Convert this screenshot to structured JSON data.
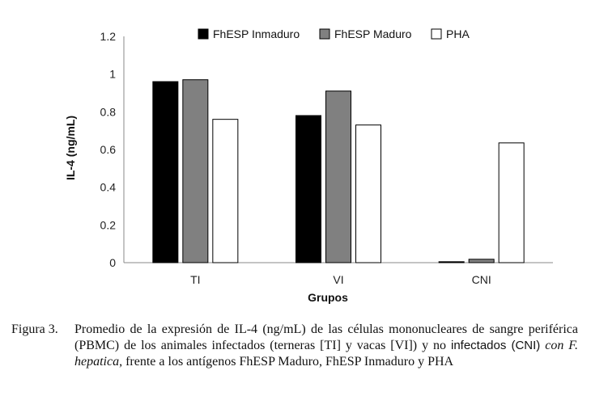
{
  "chart_data": {
    "type": "bar",
    "categories": [
      "TI",
      "VI",
      "CNI"
    ],
    "series": [
      {
        "name": "FhESP Inmaduro",
        "values": [
          0.96,
          0.78,
          0.005
        ],
        "color": "#000000"
      },
      {
        "name": "FhESP Maduro",
        "values": [
          0.97,
          0.91,
          0.018
        ],
        "color": "#808080"
      },
      {
        "name": "PHA",
        "values": [
          0.76,
          0.73,
          0.635
        ],
        "color": "#ffffff"
      }
    ],
    "ylabel": "IL-4 (ng/mL)",
    "xlabel": "Grupos",
    "ylim": [
      0,
      1.2
    ],
    "yticks": [
      "0",
      "0.2",
      "0.4",
      "0.6",
      "0.8",
      "1",
      "1.2"
    ],
    "grid": false,
    "legend_position": "top"
  },
  "caption": {
    "label": "Figura 3.",
    "text_1": "Promedio de la expresión de IL-4 (ng/mL) de las células mononucleares de sangre periférica (PBMC) de los animales infectados (terneras [TI] y vacas [VI]) y no ",
    "text_2": "infectados (CNI)",
    "text_3": " con F. hepatica",
    "text_4": ", frente a los antígenos FhESP Maduro, FhESP Inmaduro y PHA"
  }
}
